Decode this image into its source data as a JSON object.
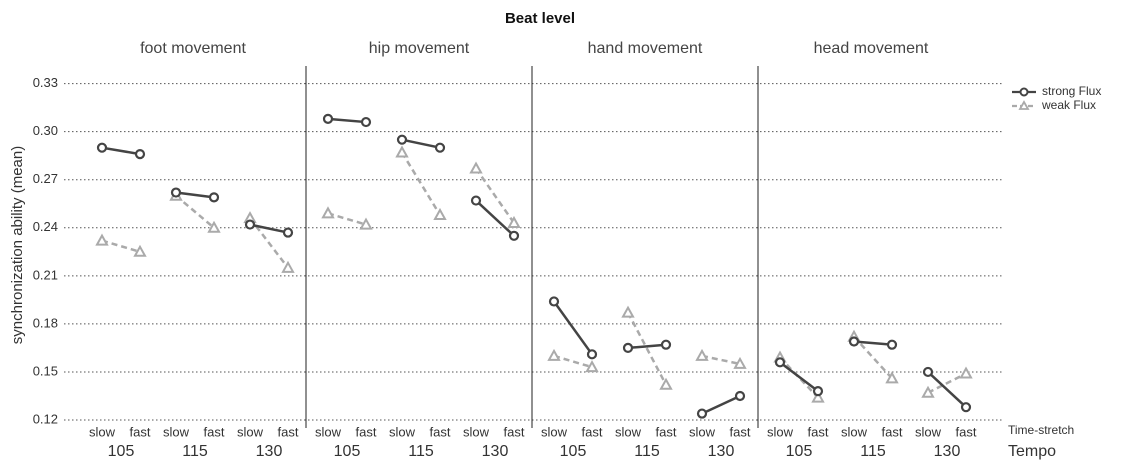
{
  "chart_data": {
    "type": "line",
    "title": "Beat level",
    "y_label": "synchronization ability (mean)",
    "x_label": "Time-stretch",
    "group_label": "Tempo",
    "categories": [
      "slow",
      "fast",
      "slow",
      "fast",
      "slow",
      "fast"
    ],
    "groups": [
      "105",
      "115",
      "130"
    ],
    "ylim": [
      0.115,
      0.341
    ],
    "yticks": [
      0.12,
      0.15,
      0.18,
      0.21,
      0.24,
      0.27,
      {
        "value": 0.3,
        "label": "0.30"
      },
      0.33
    ],
    "grid": true,
    "legend": "top-right",
    "series_style": [
      {
        "name": "strong Flux",
        "color": "#444444"
      },
      {
        "name": "weak Flux",
        "color": "#aaaaaa"
      }
    ],
    "facets": [
      {
        "title": "foot movement",
        "series": [
          {
            "values": [
              0.29,
              0.286,
              0.262,
              0.259,
              0.242,
              0.237
            ]
          },
          {
            "values": [
              0.232,
              0.225,
              0.26,
              0.24,
              0.246,
              0.215
            ]
          }
        ]
      },
      {
        "title": "hip movement",
        "series": [
          {
            "values": [
              0.308,
              0.306,
              0.295,
              0.29,
              0.257,
              0.235
            ]
          },
          {
            "values": [
              0.249,
              0.242,
              0.287,
              0.248,
              0.277,
              0.243
            ]
          }
        ]
      },
      {
        "title": "hand movement",
        "series": [
          {
            "values": [
              0.194,
              0.161,
              0.165,
              0.167,
              0.124,
              0.135
            ]
          },
          {
            "values": [
              0.16,
              0.153,
              0.187,
              0.142,
              0.16,
              0.155
            ]
          }
        ]
      },
      {
        "title": "head movement",
        "series": [
          {
            "values": [
              0.156,
              0.138,
              0.169,
              0.167,
              0.15,
              0.128
            ]
          },
          {
            "values": [
              0.159,
              0.134,
              0.172,
              0.146,
              0.137,
              0.149
            ]
          }
        ]
      }
    ]
  }
}
